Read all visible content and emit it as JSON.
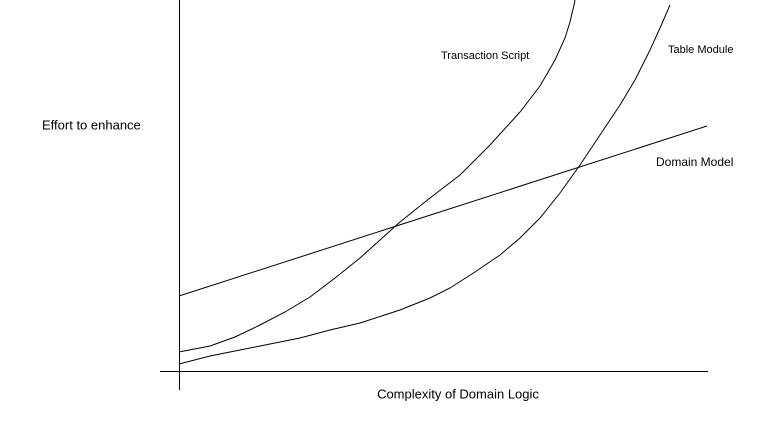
{
  "y_axis_label": "Effort to enhance",
  "x_axis_label": "Complexity of Domain Logic",
  "curves": [
    {
      "label": "Transaction Script"
    },
    {
      "label": "Table Module"
    },
    {
      "label": "Domain Model"
    }
  ]
}
